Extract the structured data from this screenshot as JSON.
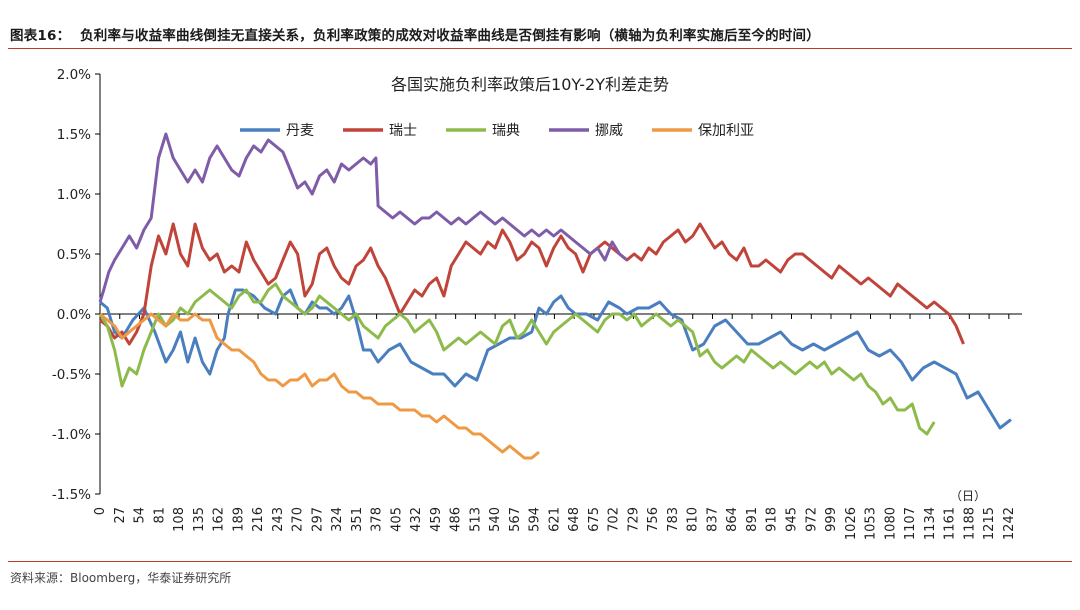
{
  "figure_label": "图表16：",
  "figure_title": "负利率与收益率曲线倒挂无直接关系，负利率政策的成效对收益率曲线是否倒挂有影响（横轴为负利率实施后至今的时间）",
  "source": "资料来源：Bloomberg，华泰证券研究所",
  "chart_data": {
    "type": "line",
    "title": "各国实施负利率政策后10Y-2Y利差走势",
    "xlabel": "（日）",
    "ylabel": "",
    "xlim": [
      0,
      1260
    ],
    "ylim": [
      -1.5,
      2.0
    ],
    "x_ticks": [
      "0",
      "27",
      "54",
      "81",
      "108",
      "135",
      "162",
      "189",
      "216",
      "243",
      "270",
      "297",
      "324",
      "351",
      "378",
      "405",
      "432",
      "459",
      "486",
      "513",
      "540",
      "567",
      "594",
      "621",
      "648",
      "675",
      "702",
      "729",
      "756",
      "783",
      "810",
      "837",
      "864",
      "891",
      "918",
      "945",
      "972",
      "999",
      "1026",
      "1053",
      "1080",
      "1107",
      "1134",
      "1161",
      "1188",
      "1215",
      "1242"
    ],
    "y_ticks": [
      "2.0%",
      "1.5%",
      "1.0%",
      "0.5%",
      "0.0%",
      "-0.5%",
      "-1.0%",
      "-1.5%"
    ],
    "y_tick_values": [
      2.0,
      1.5,
      1.0,
      0.5,
      0.0,
      -0.5,
      -1.0,
      -1.5
    ],
    "legend_position": "top",
    "grid": false,
    "series": [
      {
        "name": "丹麦",
        "color": "#4a7ebf",
        "x": [
          0,
          10,
          20,
          30,
          45,
          60,
          75,
          90,
          100,
          110,
          120,
          130,
          140,
          150,
          160,
          170,
          175,
          185,
          195,
          210,
          225,
          240,
          250,
          260,
          270,
          280,
          290,
          300,
          310,
          320,
          330,
          340,
          350,
          360,
          370,
          380,
          395,
          410,
          425,
          440,
          455,
          470,
          485,
          500,
          515,
          530,
          545,
          560,
          575,
          590,
          600,
          610,
          620,
          630,
          640,
          650,
          665,
          680,
          695,
          710,
          720,
          735,
          750,
          765,
          780,
          795,
          810,
          825,
          840,
          855,
          870,
          885,
          900,
          915,
          930,
          945,
          960,
          975,
          990,
          1005,
          1020,
          1035,
          1050,
          1065,
          1080,
          1095,
          1110,
          1125,
          1140,
          1155,
          1170,
          1185,
          1200,
          1215,
          1230,
          1245
        ],
        "y": [
          0.1,
          0.05,
          -0.15,
          -0.2,
          -0.05,
          0.05,
          -0.15,
          -0.4,
          -0.3,
          -0.15,
          -0.4,
          -0.2,
          -0.4,
          -0.5,
          -0.3,
          -0.2,
          0.0,
          0.2,
          0.2,
          0.15,
          0.05,
          0.0,
          0.15,
          0.2,
          0.05,
          0.0,
          0.1,
          0.05,
          0.05,
          0.0,
          0.05,
          0.15,
          -0.05,
          -0.3,
          -0.3,
          -0.4,
          -0.3,
          -0.25,
          -0.4,
          -0.45,
          -0.5,
          -0.5,
          -0.6,
          -0.5,
          -0.55,
          -0.3,
          -0.25,
          -0.2,
          -0.2,
          -0.15,
          0.05,
          0.0,
          0.1,
          0.15,
          0.05,
          0.0,
          0.0,
          -0.05,
          0.1,
          0.05,
          0.0,
          0.05,
          0.05,
          0.1,
          0.0,
          -0.05,
          -0.3,
          -0.25,
          -0.1,
          -0.05,
          -0.15,
          -0.25,
          -0.25,
          -0.2,
          -0.15,
          -0.25,
          -0.3,
          -0.25,
          -0.3,
          -0.25,
          -0.2,
          -0.15,
          -0.3,
          -0.35,
          -0.3,
          -0.4,
          -0.55,
          -0.45,
          -0.4,
          -0.45,
          -0.5,
          -0.7,
          -0.65,
          -0.8,
          -0.95,
          -0.88
        ]
      },
      {
        "name": "瑞士",
        "color": "#c0443a",
        "x": [
          0,
          10,
          20,
          30,
          40,
          50,
          60,
          70,
          80,
          90,
          100,
          110,
          120,
          130,
          140,
          150,
          160,
          170,
          180,
          190,
          200,
          210,
          220,
          230,
          240,
          250,
          260,
          270,
          280,
          290,
          300,
          310,
          320,
          330,
          340,
          350,
          360,
          370,
          380,
          390,
          400,
          410,
          420,
          430,
          440,
          450,
          460,
          470,
          480,
          490,
          500,
          510,
          520,
          530,
          540,
          550,
          560,
          570,
          580,
          590,
          600,
          610,
          620,
          630,
          640,
          650,
          660,
          670,
          680,
          690,
          700,
          710,
          720,
          730,
          740,
          750,
          760,
          770,
          780,
          790,
          800,
          810,
          820,
          830,
          840,
          850,
          860,
          870,
          880,
          890,
          900,
          910,
          920,
          930,
          940,
          950,
          960,
          970,
          980,
          990,
          1000,
          1010,
          1020,
          1030,
          1040,
          1050,
          1060,
          1070,
          1080,
          1090,
          1100,
          1110,
          1120,
          1130,
          1140,
          1150,
          1160,
          1170,
          1180
        ],
        "y": [
          -0.05,
          -0.1,
          -0.2,
          -0.15,
          -0.25,
          -0.15,
          0.0,
          0.4,
          0.65,
          0.5,
          0.75,
          0.5,
          0.4,
          0.75,
          0.55,
          0.45,
          0.5,
          0.35,
          0.4,
          0.35,
          0.6,
          0.45,
          0.35,
          0.25,
          0.3,
          0.45,
          0.6,
          0.5,
          0.15,
          0.25,
          0.5,
          0.55,
          0.4,
          0.3,
          0.25,
          0.4,
          0.45,
          0.55,
          0.4,
          0.3,
          0.15,
          0.0,
          0.1,
          0.2,
          0.15,
          0.25,
          0.3,
          0.15,
          0.4,
          0.5,
          0.6,
          0.55,
          0.5,
          0.6,
          0.55,
          0.7,
          0.6,
          0.45,
          0.5,
          0.6,
          0.55,
          0.4,
          0.55,
          0.65,
          0.55,
          0.5,
          0.35,
          0.5,
          0.55,
          0.6,
          0.55,
          0.5,
          0.45,
          0.5,
          0.45,
          0.55,
          0.5,
          0.6,
          0.65,
          0.7,
          0.6,
          0.65,
          0.75,
          0.65,
          0.55,
          0.6,
          0.5,
          0.45,
          0.55,
          0.4,
          0.4,
          0.45,
          0.4,
          0.35,
          0.45,
          0.5,
          0.5,
          0.45,
          0.4,
          0.35,
          0.3,
          0.4,
          0.35,
          0.3,
          0.25,
          0.3,
          0.25,
          0.2,
          0.15,
          0.25,
          0.2,
          0.15,
          0.1,
          0.05,
          0.1,
          0.05,
          0.0,
          -0.1,
          -0.25
        ]
      },
      {
        "name": "瑞典",
        "color": "#8dbb4b",
        "x": [
          0,
          10,
          20,
          30,
          40,
          50,
          60,
          70,
          80,
          90,
          100,
          110,
          120,
          130,
          140,
          150,
          160,
          170,
          180,
          190,
          200,
          210,
          220,
          230,
          240,
          250,
          260,
          270,
          280,
          290,
          300,
          310,
          320,
          330,
          340,
          350,
          360,
          370,
          380,
          390,
          400,
          410,
          420,
          430,
          440,
          450,
          460,
          470,
          480,
          490,
          500,
          510,
          520,
          530,
          540,
          550,
          560,
          570,
          580,
          590,
          600,
          610,
          620,
          630,
          640,
          650,
          660,
          670,
          680,
          690,
          700,
          710,
          720,
          730,
          740,
          750,
          760,
          770,
          780,
          790,
          800,
          810,
          820,
          830,
          840,
          850,
          860,
          870,
          880,
          890,
          900,
          910,
          920,
          930,
          940,
          950,
          960,
          970,
          980,
          990,
          1000,
          1010,
          1020,
          1030,
          1040,
          1050,
          1060,
          1070,
          1080,
          1090,
          1100,
          1110,
          1120,
          1130,
          1140
        ],
        "y": [
          0.0,
          -0.1,
          -0.3,
          -0.6,
          -0.45,
          -0.5,
          -0.3,
          -0.15,
          0.0,
          -0.1,
          -0.05,
          0.05,
          0.0,
          0.1,
          0.15,
          0.2,
          0.15,
          0.1,
          0.05,
          0.15,
          0.2,
          0.1,
          0.1,
          0.2,
          0.25,
          0.15,
          0.1,
          0.05,
          0.0,
          0.05,
          0.15,
          0.1,
          0.05,
          0.0,
          -0.05,
          0.0,
          -0.1,
          -0.15,
          -0.2,
          -0.1,
          -0.05,
          0.0,
          -0.05,
          -0.15,
          -0.1,
          -0.05,
          -0.15,
          -0.3,
          -0.25,
          -0.2,
          -0.25,
          -0.2,
          -0.15,
          -0.2,
          -0.25,
          -0.1,
          -0.05,
          -0.2,
          -0.15,
          -0.05,
          -0.15,
          -0.25,
          -0.15,
          -0.1,
          -0.05,
          0.0,
          -0.05,
          -0.1,
          -0.15,
          -0.05,
          0.0,
          0.0,
          -0.05,
          0.0,
          -0.1,
          -0.05,
          0.0,
          -0.05,
          -0.1,
          -0.05,
          -0.1,
          -0.15,
          -0.35,
          -0.3,
          -0.4,
          -0.45,
          -0.4,
          -0.35,
          -0.4,
          -0.3,
          -0.35,
          -0.4,
          -0.45,
          -0.4,
          -0.45,
          -0.5,
          -0.45,
          -0.4,
          -0.45,
          -0.4,
          -0.5,
          -0.45,
          -0.5,
          -0.55,
          -0.5,
          -0.6,
          -0.65,
          -0.75,
          -0.7,
          -0.8,
          -0.8,
          -0.75,
          -0.95,
          -1.0,
          -0.9
        ]
      },
      {
        "name": "挪威",
        "color": "#7e5ca8",
        "x": [
          0,
          5,
          12,
          20,
          30,
          40,
          50,
          60,
          70,
          80,
          90,
          100,
          110,
          120,
          130,
          140,
          150,
          160,
          170,
          180,
          190,
          200,
          210,
          220,
          230,
          240,
          250,
          260,
          270,
          280,
          290,
          300,
          310,
          320,
          330,
          340,
          350,
          360,
          370,
          377,
          380,
          390,
          400,
          410,
          420,
          430,
          440,
          450,
          460,
          470,
          480,
          490,
          500,
          510,
          520,
          530,
          540,
          550,
          560,
          570,
          580,
          590,
          600,
          610,
          620,
          630,
          640,
          650,
          660,
          670,
          680,
          690,
          700,
          710,
          720
        ],
        "y": [
          0.1,
          0.2,
          0.35,
          0.45,
          0.55,
          0.65,
          0.55,
          0.7,
          0.8,
          1.3,
          1.5,
          1.3,
          1.2,
          1.1,
          1.2,
          1.1,
          1.3,
          1.4,
          1.3,
          1.2,
          1.15,
          1.3,
          1.4,
          1.35,
          1.45,
          1.4,
          1.35,
          1.2,
          1.05,
          1.1,
          1.0,
          1.15,
          1.2,
          1.1,
          1.25,
          1.2,
          1.25,
          1.3,
          1.25,
          1.3,
          0.9,
          0.85,
          0.8,
          0.85,
          0.8,
          0.75,
          0.8,
          0.8,
          0.85,
          0.8,
          0.75,
          0.8,
          0.75,
          0.8,
          0.85,
          0.8,
          0.75,
          0.8,
          0.75,
          0.7,
          0.65,
          0.7,
          0.65,
          0.7,
          0.65,
          0.7,
          0.65,
          0.6,
          0.55,
          0.5,
          0.55,
          0.45,
          0.6,
          0.5,
          0.45
        ]
      },
      {
        "name": "保加利亚",
        "color": "#ee9943",
        "x": [
          0,
          10,
          20,
          30,
          40,
          50,
          60,
          70,
          80,
          90,
          100,
          110,
          120,
          130,
          140,
          150,
          160,
          170,
          180,
          190,
          200,
          210,
          220,
          230,
          240,
          250,
          260,
          270,
          280,
          290,
          300,
          310,
          320,
          330,
          340,
          350,
          360,
          370,
          380,
          390,
          400,
          410,
          420,
          430,
          440,
          450,
          460,
          470,
          480,
          490,
          500,
          510,
          520,
          530,
          540,
          550,
          560,
          570,
          580,
          590,
          600
        ],
        "y": [
          0.0,
          -0.05,
          -0.1,
          -0.2,
          -0.15,
          -0.1,
          -0.05,
          0.0,
          -0.05,
          -0.1,
          0.0,
          -0.05,
          -0.05,
          0.0,
          -0.05,
          -0.05,
          -0.2,
          -0.25,
          -0.3,
          -0.3,
          -0.35,
          -0.4,
          -0.5,
          -0.55,
          -0.55,
          -0.6,
          -0.55,
          -0.55,
          -0.5,
          -0.6,
          -0.55,
          -0.55,
          -0.5,
          -0.6,
          -0.65,
          -0.65,
          -0.7,
          -0.7,
          -0.75,
          -0.75,
          -0.75,
          -0.8,
          -0.8,
          -0.8,
          -0.85,
          -0.85,
          -0.9,
          -0.85,
          -0.9,
          -0.95,
          -0.95,
          -1.0,
          -1.0,
          -1.05,
          -1.1,
          -1.15,
          -1.1,
          -1.15,
          -1.2,
          -1.2,
          -1.15
        ]
      }
    ]
  }
}
